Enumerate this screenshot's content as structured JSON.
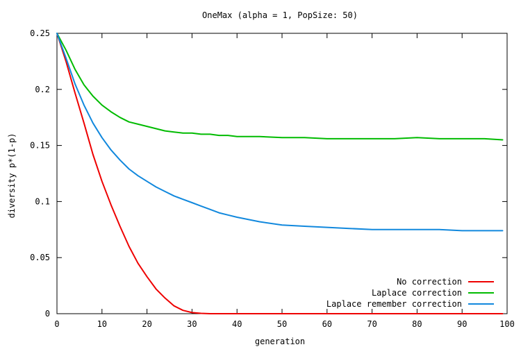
{
  "chart_data": {
    "type": "line",
    "title": "OneMax (alpha = 1, PopSize: 50)",
    "xlabel": "generation",
    "ylabel": "diversity p*(1-p)",
    "xlim": [
      0,
      100
    ],
    "ylim": [
      0,
      0.25
    ],
    "xticks": [
      "0",
      "10",
      "20",
      "30",
      "40",
      "50",
      "60",
      "70",
      "80",
      "90",
      "100"
    ],
    "yticks": [
      "0",
      "0.05",
      "0.1",
      "0.15",
      "0.2",
      "0.25"
    ],
    "grid": false,
    "legend_position": "bottom-right",
    "x": [
      0,
      2,
      4,
      6,
      8,
      10,
      12,
      14,
      16,
      18,
      20,
      22,
      24,
      26,
      28,
      30,
      32,
      34,
      36,
      38,
      40,
      45,
      50,
      55,
      60,
      65,
      70,
      75,
      80,
      85,
      90,
      95,
      99
    ],
    "series": [
      {
        "name": "No correction",
        "color": "#ee0000",
        "values": [
          0.25,
          0.225,
          0.197,
          0.17,
          0.142,
          0.118,
          0.097,
          0.078,
          0.06,
          0.045,
          0.033,
          0.022,
          0.014,
          0.007,
          0.003,
          0.001,
          0.0003,
          0,
          0,
          0,
          0,
          0,
          0,
          0,
          0,
          0,
          0,
          0,
          0,
          0,
          0,
          0,
          0
        ]
      },
      {
        "name": "Laplace correction",
        "color": "#00bb00",
        "values": [
          0.25,
          0.235,
          0.218,
          0.204,
          0.194,
          0.186,
          0.18,
          0.175,
          0.171,
          0.169,
          0.167,
          0.165,
          0.163,
          0.162,
          0.161,
          0.161,
          0.16,
          0.16,
          0.159,
          0.159,
          0.158,
          0.158,
          0.157,
          0.157,
          0.156,
          0.156,
          0.156,
          0.156,
          0.157,
          0.156,
          0.156,
          0.156,
          0.155
        ]
      },
      {
        "name": "Laplace remember correction",
        "color": "#1188dd",
        "values": [
          0.25,
          0.228,
          0.205,
          0.186,
          0.17,
          0.157,
          0.146,
          0.137,
          0.129,
          0.123,
          0.118,
          0.113,
          0.109,
          0.105,
          0.102,
          0.099,
          0.096,
          0.093,
          0.09,
          0.088,
          0.086,
          0.082,
          0.079,
          0.078,
          0.077,
          0.076,
          0.075,
          0.075,
          0.075,
          0.075,
          0.074,
          0.074,
          0.074
        ]
      }
    ]
  }
}
